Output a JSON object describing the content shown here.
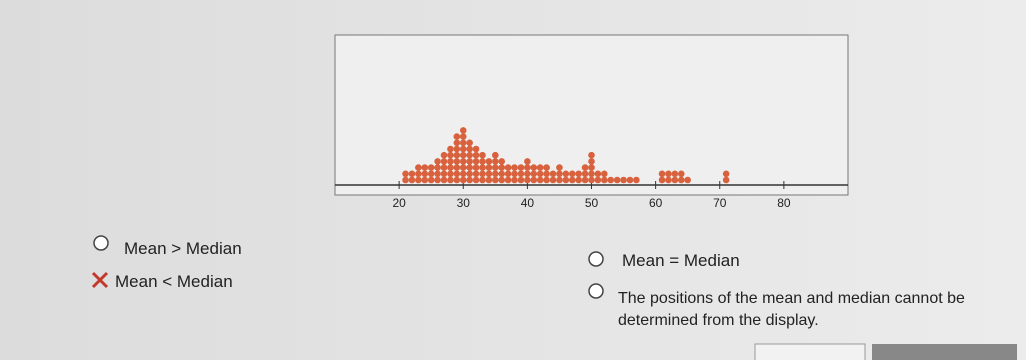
{
  "chart_data": {
    "type": "dot",
    "x": [
      21,
      22,
      23,
      24,
      25,
      26,
      27,
      28,
      29,
      30,
      31,
      32,
      33,
      34,
      35,
      36,
      37,
      38,
      39,
      40,
      41,
      42,
      43,
      44,
      45,
      46,
      47,
      48,
      49,
      50,
      51,
      52,
      53,
      54,
      55,
      56,
      57,
      61,
      62,
      63,
      64,
      65,
      71
    ],
    "counts": [
      2,
      2,
      3,
      3,
      3,
      4,
      5,
      6,
      8,
      9,
      7,
      6,
      5,
      4,
      5,
      4,
      3,
      3,
      3,
      4,
      3,
      3,
      3,
      2,
      3,
      2,
      2,
      2,
      3,
      5,
      2,
      2,
      1,
      1,
      1,
      1,
      1,
      2,
      2,
      2,
      2,
      1,
      2
    ],
    "color": "#d9623e",
    "xlim": [
      10,
      90
    ],
    "xticks": [
      20,
      30,
      40,
      50,
      60,
      70,
      80
    ]
  },
  "options": [
    "Mean > Median",
    "Mean < Median",
    "Mean = Median",
    "The positions of the mean and median cannot be determined from the display."
  ]
}
